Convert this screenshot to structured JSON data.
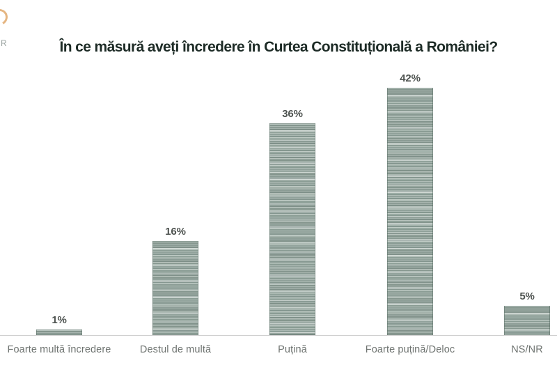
{
  "page": {
    "background": "#ffffff"
  },
  "logo": {
    "fragment_letter": "R",
    "arc_color": "#dfa464"
  },
  "chart_data": {
    "type": "bar",
    "title": "În ce măsură aveți încredere în Curtea Constituțională a României?",
    "categories": [
      "Foarte multă încredere",
      "Destul de multă",
      "Puțină",
      "Foarte puțină/Deloc",
      "NS/NR"
    ],
    "values": [
      1,
      16,
      36,
      42,
      5
    ],
    "value_labels": [
      "1%",
      "16%",
      "36%",
      "42%",
      "5%"
    ],
    "xlabel": "",
    "ylabel": "",
    "ylim": [
      0,
      45
    ],
    "grid": false,
    "legend": false,
    "bar_color": "#a3b3ac",
    "bar_stripe_dark": "#8a9c94",
    "bar_stripe_light": "#c0cbc5",
    "title_color": "#1d2b26",
    "value_label_color": "#4e5350",
    "category_label_color": "#6e7370",
    "baseline_color": "#cfcfcf"
  }
}
